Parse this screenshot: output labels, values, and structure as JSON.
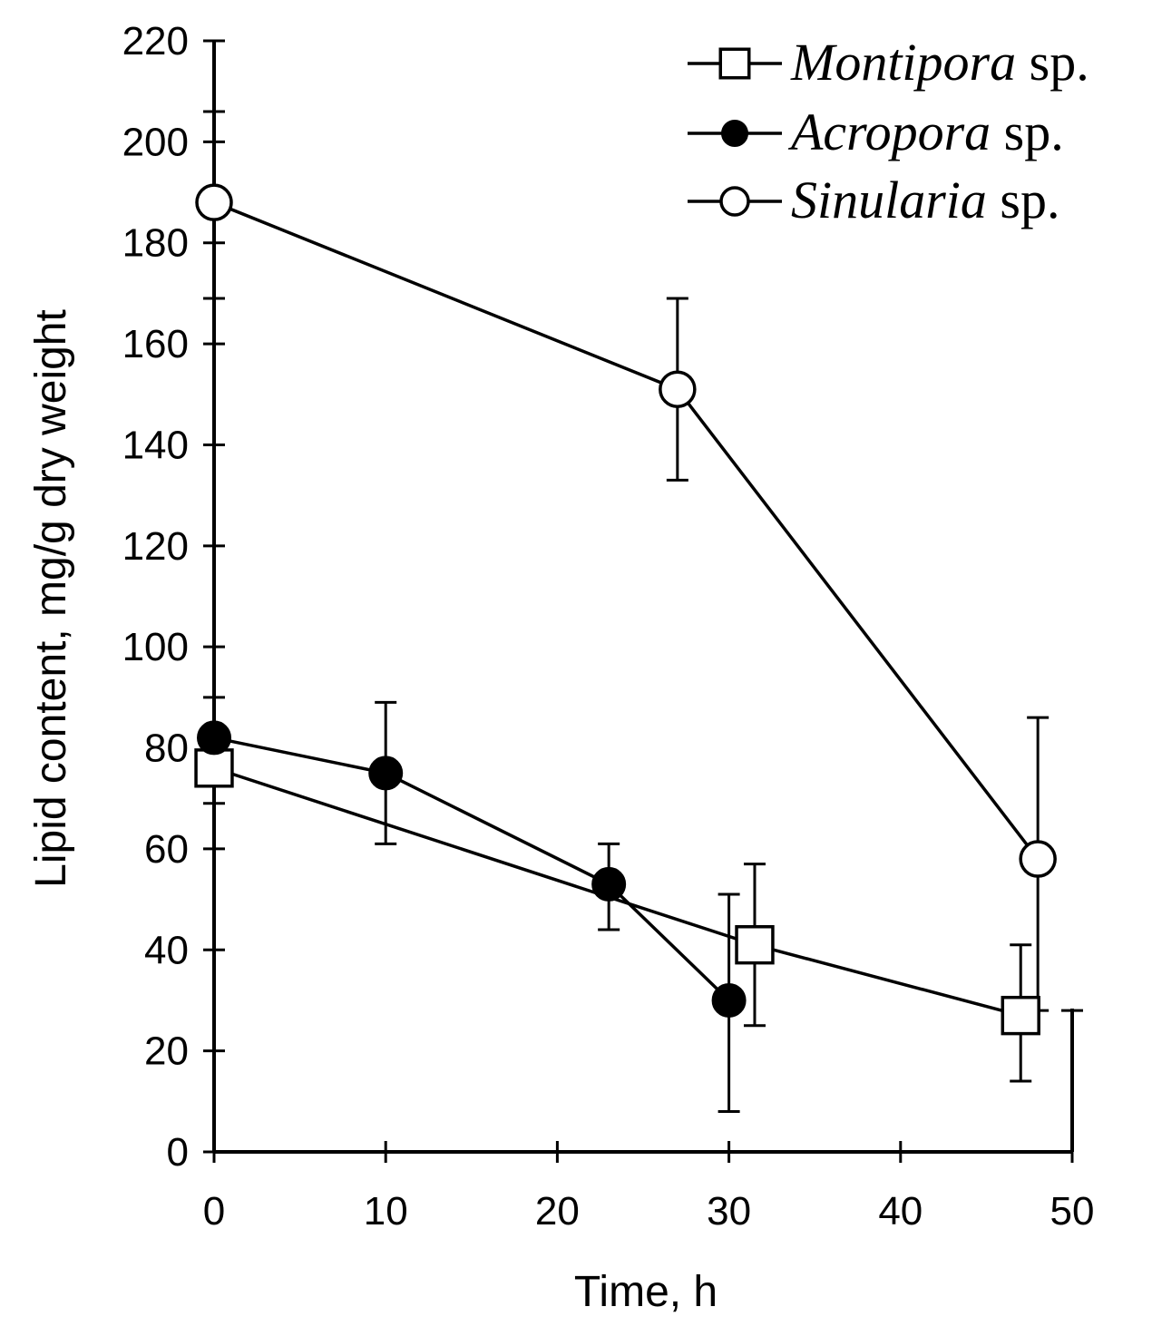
{
  "chart_data": {
    "type": "line",
    "title": "",
    "xlabel": "Time, h",
    "ylabel": "Lipid content, mg/g dry weight",
    "xlim": [
      0,
      50
    ],
    "ylim": [
      0,
      220
    ],
    "xticks": [
      0,
      10,
      20,
      30,
      40,
      50
    ],
    "yticks": [
      0,
      20,
      40,
      60,
      80,
      100,
      120,
      140,
      160,
      180,
      200,
      220
    ],
    "legend_position": "top-right",
    "series": [
      {
        "name": "Montipora sp.",
        "name_italic": "Montipora",
        "name_suffix": " sp.",
        "marker": "open-square",
        "points": [
          {
            "x": 0,
            "y": 76,
            "err_low": 69,
            "err_high": 83
          },
          {
            "x": 31.5,
            "y": 41,
            "err_low": 25,
            "err_high": 57
          },
          {
            "x": 47,
            "y": 27,
            "err_low": 14,
            "err_high": 41
          }
        ]
      },
      {
        "name": "Acropora sp.",
        "name_italic": "Acropora",
        "name_suffix": " sp.",
        "marker": "filled-circle",
        "points": [
          {
            "x": 0,
            "y": 82,
            "err_low": 74,
            "err_high": 90
          },
          {
            "x": 10,
            "y": 75,
            "err_low": 61,
            "err_high": 89
          },
          {
            "x": 23,
            "y": 53,
            "err_low": 44,
            "err_high": 61
          },
          {
            "x": 30,
            "y": 30,
            "err_low": 8,
            "err_high": 51
          }
        ]
      },
      {
        "name": "Sinularia sp.",
        "name_italic": "Sinularia",
        "name_suffix": " sp.",
        "marker": "open-circle",
        "points": [
          {
            "x": 0,
            "y": 188,
            "err_low": 169,
            "err_high": 206
          },
          {
            "x": 27,
            "y": 151,
            "err_low": 133,
            "err_high": 169
          },
          {
            "x": 48,
            "y": 58,
            "err_low": 28,
            "err_high": 86
          }
        ]
      }
    ]
  }
}
